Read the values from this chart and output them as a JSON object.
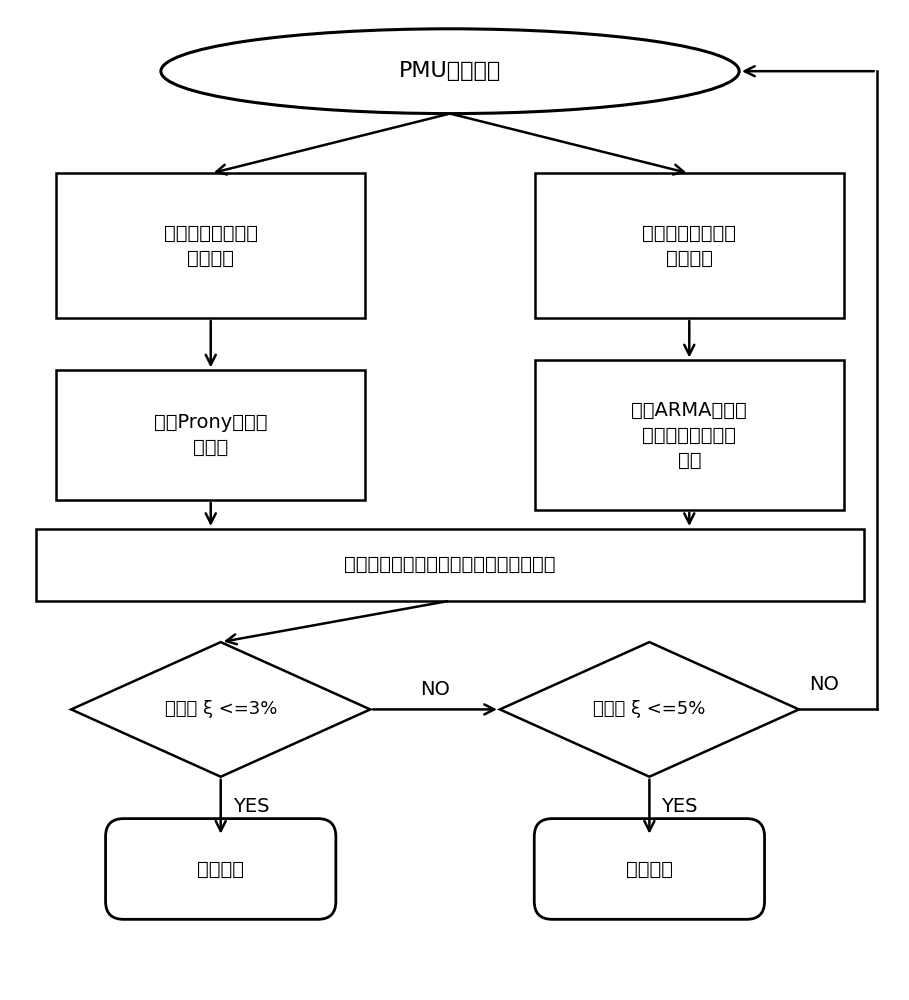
{
  "title": "PMU数据监测",
  "box1_left": "可以观测到明显振\n荡的机组",
  "box1_right": "难以观测到明显振\n荡的机组",
  "box2_left": "采用Prony方法进\n行辨识",
  "box2_right": "采用ARMA模型方\n法辨识，进行聚类\n计算",
  "box3": "电容器投切响应存在的实时振荡模式信息",
  "diamond1": "阻尼比 ξ <=3%",
  "diamond2": "阻尼比 ξ <=5%",
  "terminal1": "红色告警",
  "terminal2": "黄色告警",
  "yes_label": "YES",
  "no_label": "NO",
  "bg_color": "#ffffff",
  "line_color": "#000000",
  "text_color": "#000000"
}
